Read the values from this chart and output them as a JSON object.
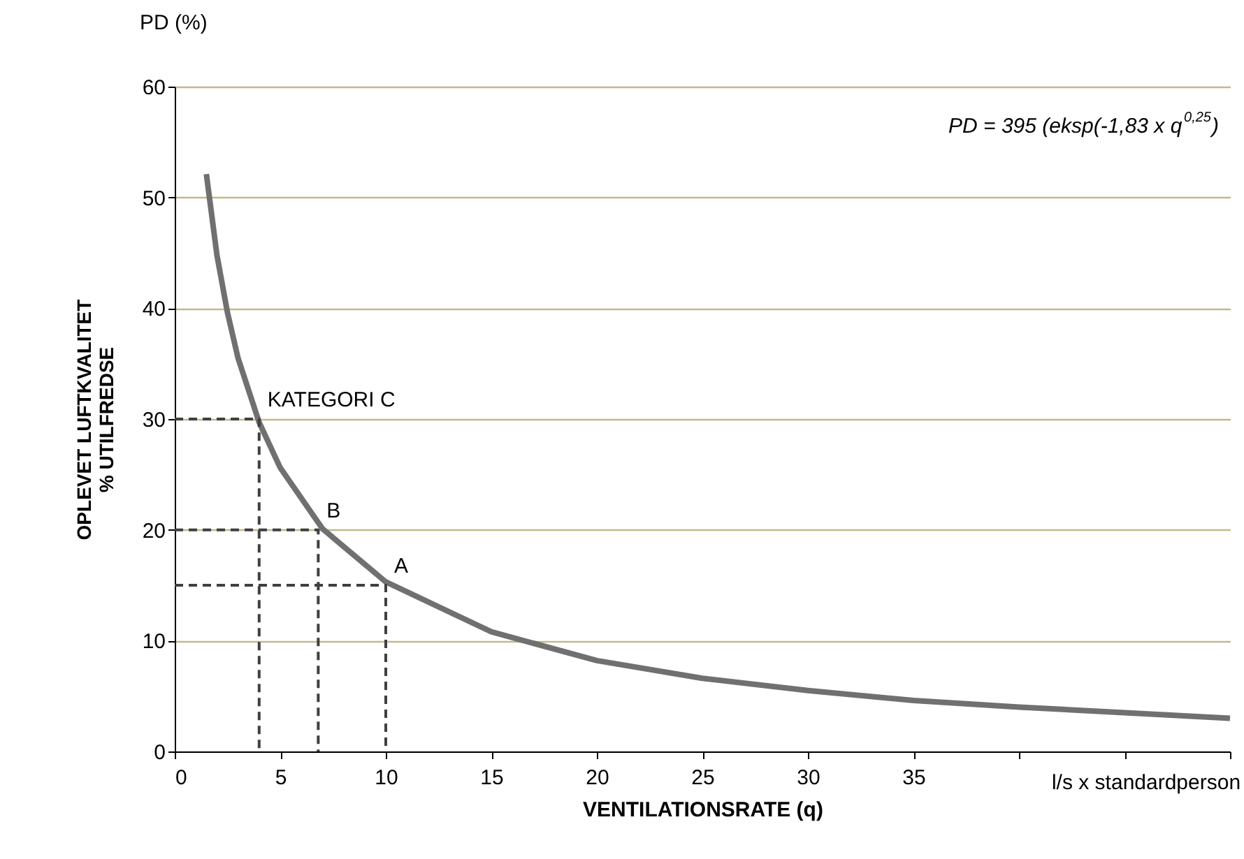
{
  "chart_data": {
    "type": "line",
    "xlabel": "VENTILATIONSRATE (q)",
    "ylabel": "OPLEVET LUFTKVALITET\n% UTILFREDSE",
    "xlim": [
      0,
      50
    ],
    "ylim": [
      0,
      60
    ],
    "xticks": [
      0,
      5,
      10,
      15,
      20,
      25,
      30,
      35,
      {
        "value": 40,
        "label": null
      },
      {
        "value": 45,
        "label": null
      },
      {
        "value": 50,
        "label": null
      }
    ],
    "yticks": [
      0,
      10,
      20,
      30,
      40,
      50,
      60
    ],
    "grid": "y",
    "marker": "none",
    "series": [
      {
        "color": "#707070",
        "line_style": "solid",
        "x": [
          1.5,
          2,
          2.5,
          3,
          4,
          5,
          7,
          10,
          15,
          20,
          25,
          30,
          35,
          40,
          45,
          50
        ],
        "values": [
          52.1,
          44.8,
          39.6,
          35.5,
          29.7,
          25.6,
          20.1,
          15.3,
          10.8,
          8.2,
          6.6,
          5.5,
          4.6,
          4.0,
          3.5,
          3.0
        ]
      },
      {
        "color": "#404040",
        "line_style": "dashed",
        "x": [
          0,
          4,
          4
        ],
        "values": [
          30,
          30,
          0
        ]
      },
      {
        "color": "#404040",
        "line_style": "dashed",
        "x": [
          0,
          6.8,
          6.8
        ],
        "values": [
          20,
          20,
          0
        ]
      },
      {
        "color": "#404040",
        "line_style": "dashed",
        "x": [
          0,
          10,
          10
        ],
        "values": [
          15,
          15,
          0
        ]
      }
    ],
    "annotations": [
      "PD (%)",
      "l/s x standardperson",
      "PD = 395 (eksp(-1,83 x q$^{0,25}$)",
      {
        "text": "KATEGORI C",
        "x": 4,
        "y": 30
      },
      {
        "text": "B",
        "x": 6.8,
        "y": 20
      },
      {
        "text": "A",
        "x": 10,
        "y": 15
      }
    ]
  }
}
